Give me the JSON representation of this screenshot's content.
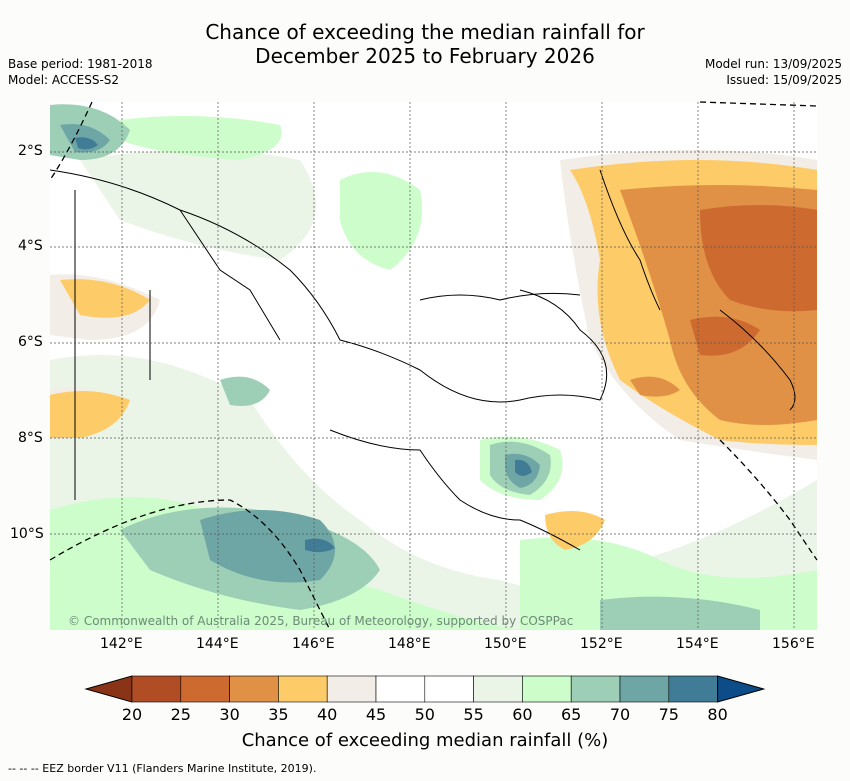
{
  "title_line1": "Chance of exceeding the median rainfall for",
  "title_line2": "December 2025 to February 2026",
  "base_period": "Base period: 1981-2018",
  "model": "Model: ACCESS-S2",
  "model_run": "Model run: 13/09/2025",
  "issued": "Issued: 15/09/2025",
  "lat_labels": [
    "2°S",
    "4°S",
    "6°S",
    "8°S",
    "10°S"
  ],
  "lon_labels": [
    "142°E",
    "144°E",
    "146°E",
    "148°E",
    "150°E",
    "152°E",
    "154°E",
    "156°E"
  ],
  "copyright": "© Commonwealth of Australia 2025, Bureau of Meteorology, supported by COSPPac",
  "colorbar": {
    "title": "Chance of exceeding median rainfall (%)",
    "labels": [
      "20",
      "25",
      "30",
      "35",
      "40",
      "45",
      "50",
      "55",
      "60",
      "65",
      "70",
      "75",
      "80"
    ],
    "bins": [
      {
        "range": "<20",
        "color": "#8a3417"
      },
      {
        "range": "20-25",
        "color": "#b14d25"
      },
      {
        "range": "25-30",
        "color": "#cd6a30"
      },
      {
        "range": "30-35",
        "color": "#e09145"
      },
      {
        "range": "35-40",
        "color": "#fdcc68"
      },
      {
        "range": "40-45",
        "color": "#f3ede7"
      },
      {
        "range": "45-50",
        "color": "#ffffff"
      },
      {
        "range": "50-55",
        "color": "#ffffff"
      },
      {
        "range": "55-60",
        "color": "#eaf5e8"
      },
      {
        "range": "60-65",
        "color": "#ccfdca"
      },
      {
        "range": "65-70",
        "color": "#9dcfb6"
      },
      {
        "range": "70-75",
        "color": "#6ea6a5"
      },
      {
        "range": "75-80",
        "color": "#417c96"
      },
      {
        "range": ">80",
        "color": "#0c4c88"
      }
    ]
  },
  "footer": "--  --  -- EEZ border V11 (Flanders Marine Institute, 2019)."
}
